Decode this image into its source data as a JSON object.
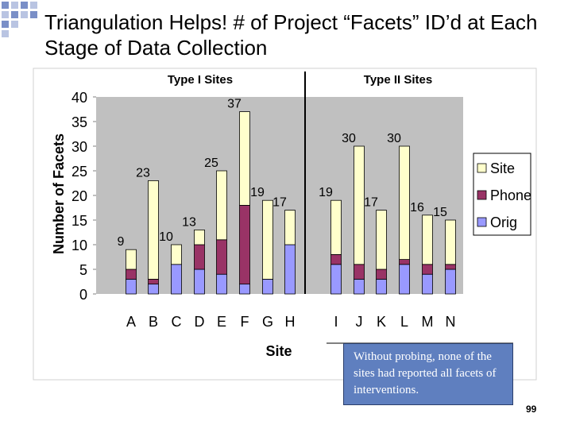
{
  "slide": {
    "title": "Triangulation Helps! # of Project “Facets” ID’d at Each Stage of Data Collection",
    "note": "Without probing, none of the sites had reported all facets of interventions.",
    "page_number": "99"
  },
  "colors": {
    "site": "#ffffcc",
    "phone": "#993366",
    "orig": "#9999ff",
    "plot_bg": "#c0c0c0",
    "note_bg": "#5f7fbf"
  },
  "chart_data": {
    "type": "bar",
    "stacked": true,
    "group_labels": [
      "Type I Sites",
      "Type II Sites"
    ],
    "categories": [
      "A",
      "B",
      "C",
      "D",
      "E",
      "F",
      "G",
      "H",
      "I",
      "J",
      "K",
      "L",
      "M",
      "N"
    ],
    "totals": [
      9,
      23,
      10,
      13,
      25,
      37,
      19,
      17,
      19,
      30,
      17,
      30,
      16,
      15
    ],
    "series": [
      {
        "name": "Orig",
        "color": "#9999ff",
        "values": [
          3,
          2,
          6,
          5,
          4,
          2,
          3,
          10,
          6,
          3,
          3,
          6,
          4,
          5
        ]
      },
      {
        "name": "Phone",
        "color": "#993366",
        "values": [
          2,
          1,
          0,
          5,
          7,
          16,
          0,
          0,
          2,
          3,
          2,
          1,
          2,
          1
        ]
      },
      {
        "name": "Site",
        "color": "#ffffcc",
        "values": [
          4,
          20,
          4,
          3,
          14,
          19,
          16,
          7,
          11,
          24,
          12,
          23,
          10,
          9
        ]
      }
    ],
    "xlabel": "Site",
    "ylabel": "Number of Facets",
    "ylim": [
      0,
      40
    ],
    "yticks": [
      0,
      5,
      10,
      15,
      20,
      25,
      30,
      35,
      40
    ],
    "grid": false,
    "legend": "right"
  }
}
